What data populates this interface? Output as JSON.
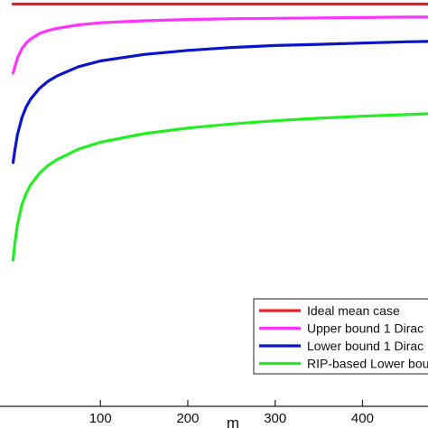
{
  "chart_data": {
    "type": "line",
    "xlabel": "m",
    "ylabel": "",
    "xlim": [
      -15,
      475
    ],
    "ylim": [
      0.0,
      1.0
    ],
    "x_ticks": [
      100,
      200,
      300,
      400
    ],
    "x_tick_labels": [
      "100",
      "200",
      "300",
      "400"
    ],
    "grid": false,
    "legend_position": "bottom-right",
    "series": [
      {
        "name": "Ideal mean case",
        "color": "#e8202a",
        "x": [
          0,
          20,
          50,
          100,
          150,
          200,
          250,
          300,
          350,
          400,
          450,
          475
        ],
        "y": [
          0.99,
          0.99,
          0.99,
          0.99,
          0.99,
          0.99,
          0.99,
          0.99,
          0.99,
          0.99,
          0.99,
          0.99
        ]
      },
      {
        "name": "Upper bound 1 Dirac",
        "color": "#ff33ff",
        "x": [
          0,
          2,
          5,
          10,
          15,
          20,
          30,
          40,
          50,
          75,
          100,
          150,
          200,
          250,
          300,
          350,
          400,
          450,
          475
        ],
        "y": [
          0.82,
          0.835,
          0.857,
          0.88,
          0.894,
          0.904,
          0.917,
          0.925,
          0.93,
          0.939,
          0.944,
          0.949,
          0.952,
          0.954,
          0.955,
          0.956,
          0.957,
          0.958,
          0.958
        ]
      },
      {
        "name": "Lower bound 1 Dirac",
        "color": "#0a14c8",
        "x": [
          0,
          2,
          5,
          10,
          15,
          20,
          30,
          40,
          50,
          75,
          100,
          150,
          200,
          250,
          300,
          350,
          400,
          450,
          475
        ],
        "y": [
          0.6,
          0.63,
          0.668,
          0.71,
          0.737,
          0.756,
          0.782,
          0.8,
          0.813,
          0.836,
          0.85,
          0.866,
          0.876,
          0.883,
          0.888,
          0.891,
          0.894,
          0.897,
          0.898
        ]
      },
      {
        "name": "RIP-based Lower bound",
        "color": "#22ee22",
        "x": [
          0,
          2,
          5,
          10,
          15,
          20,
          30,
          40,
          50,
          75,
          100,
          150,
          200,
          250,
          300,
          350,
          400,
          450,
          475
        ],
        "y": [
          0.36,
          0.4,
          0.447,
          0.496,
          0.524,
          0.545,
          0.573,
          0.593,
          0.607,
          0.633,
          0.65,
          0.671,
          0.685,
          0.695,
          0.703,
          0.709,
          0.714,
          0.718,
          0.72
        ]
      }
    ]
  },
  "legend": {
    "items": [
      {
        "label": "Ideal mean case",
        "color": "#e8202a"
      },
      {
        "label": "Upper bound 1 Dirac",
        "color": "#ff33ff"
      },
      {
        "label": "Lower bound 1 Dirac",
        "color": "#0a14c8"
      },
      {
        "label": "RIP-based Lower bound",
        "color": "#22ee22"
      }
    ]
  }
}
